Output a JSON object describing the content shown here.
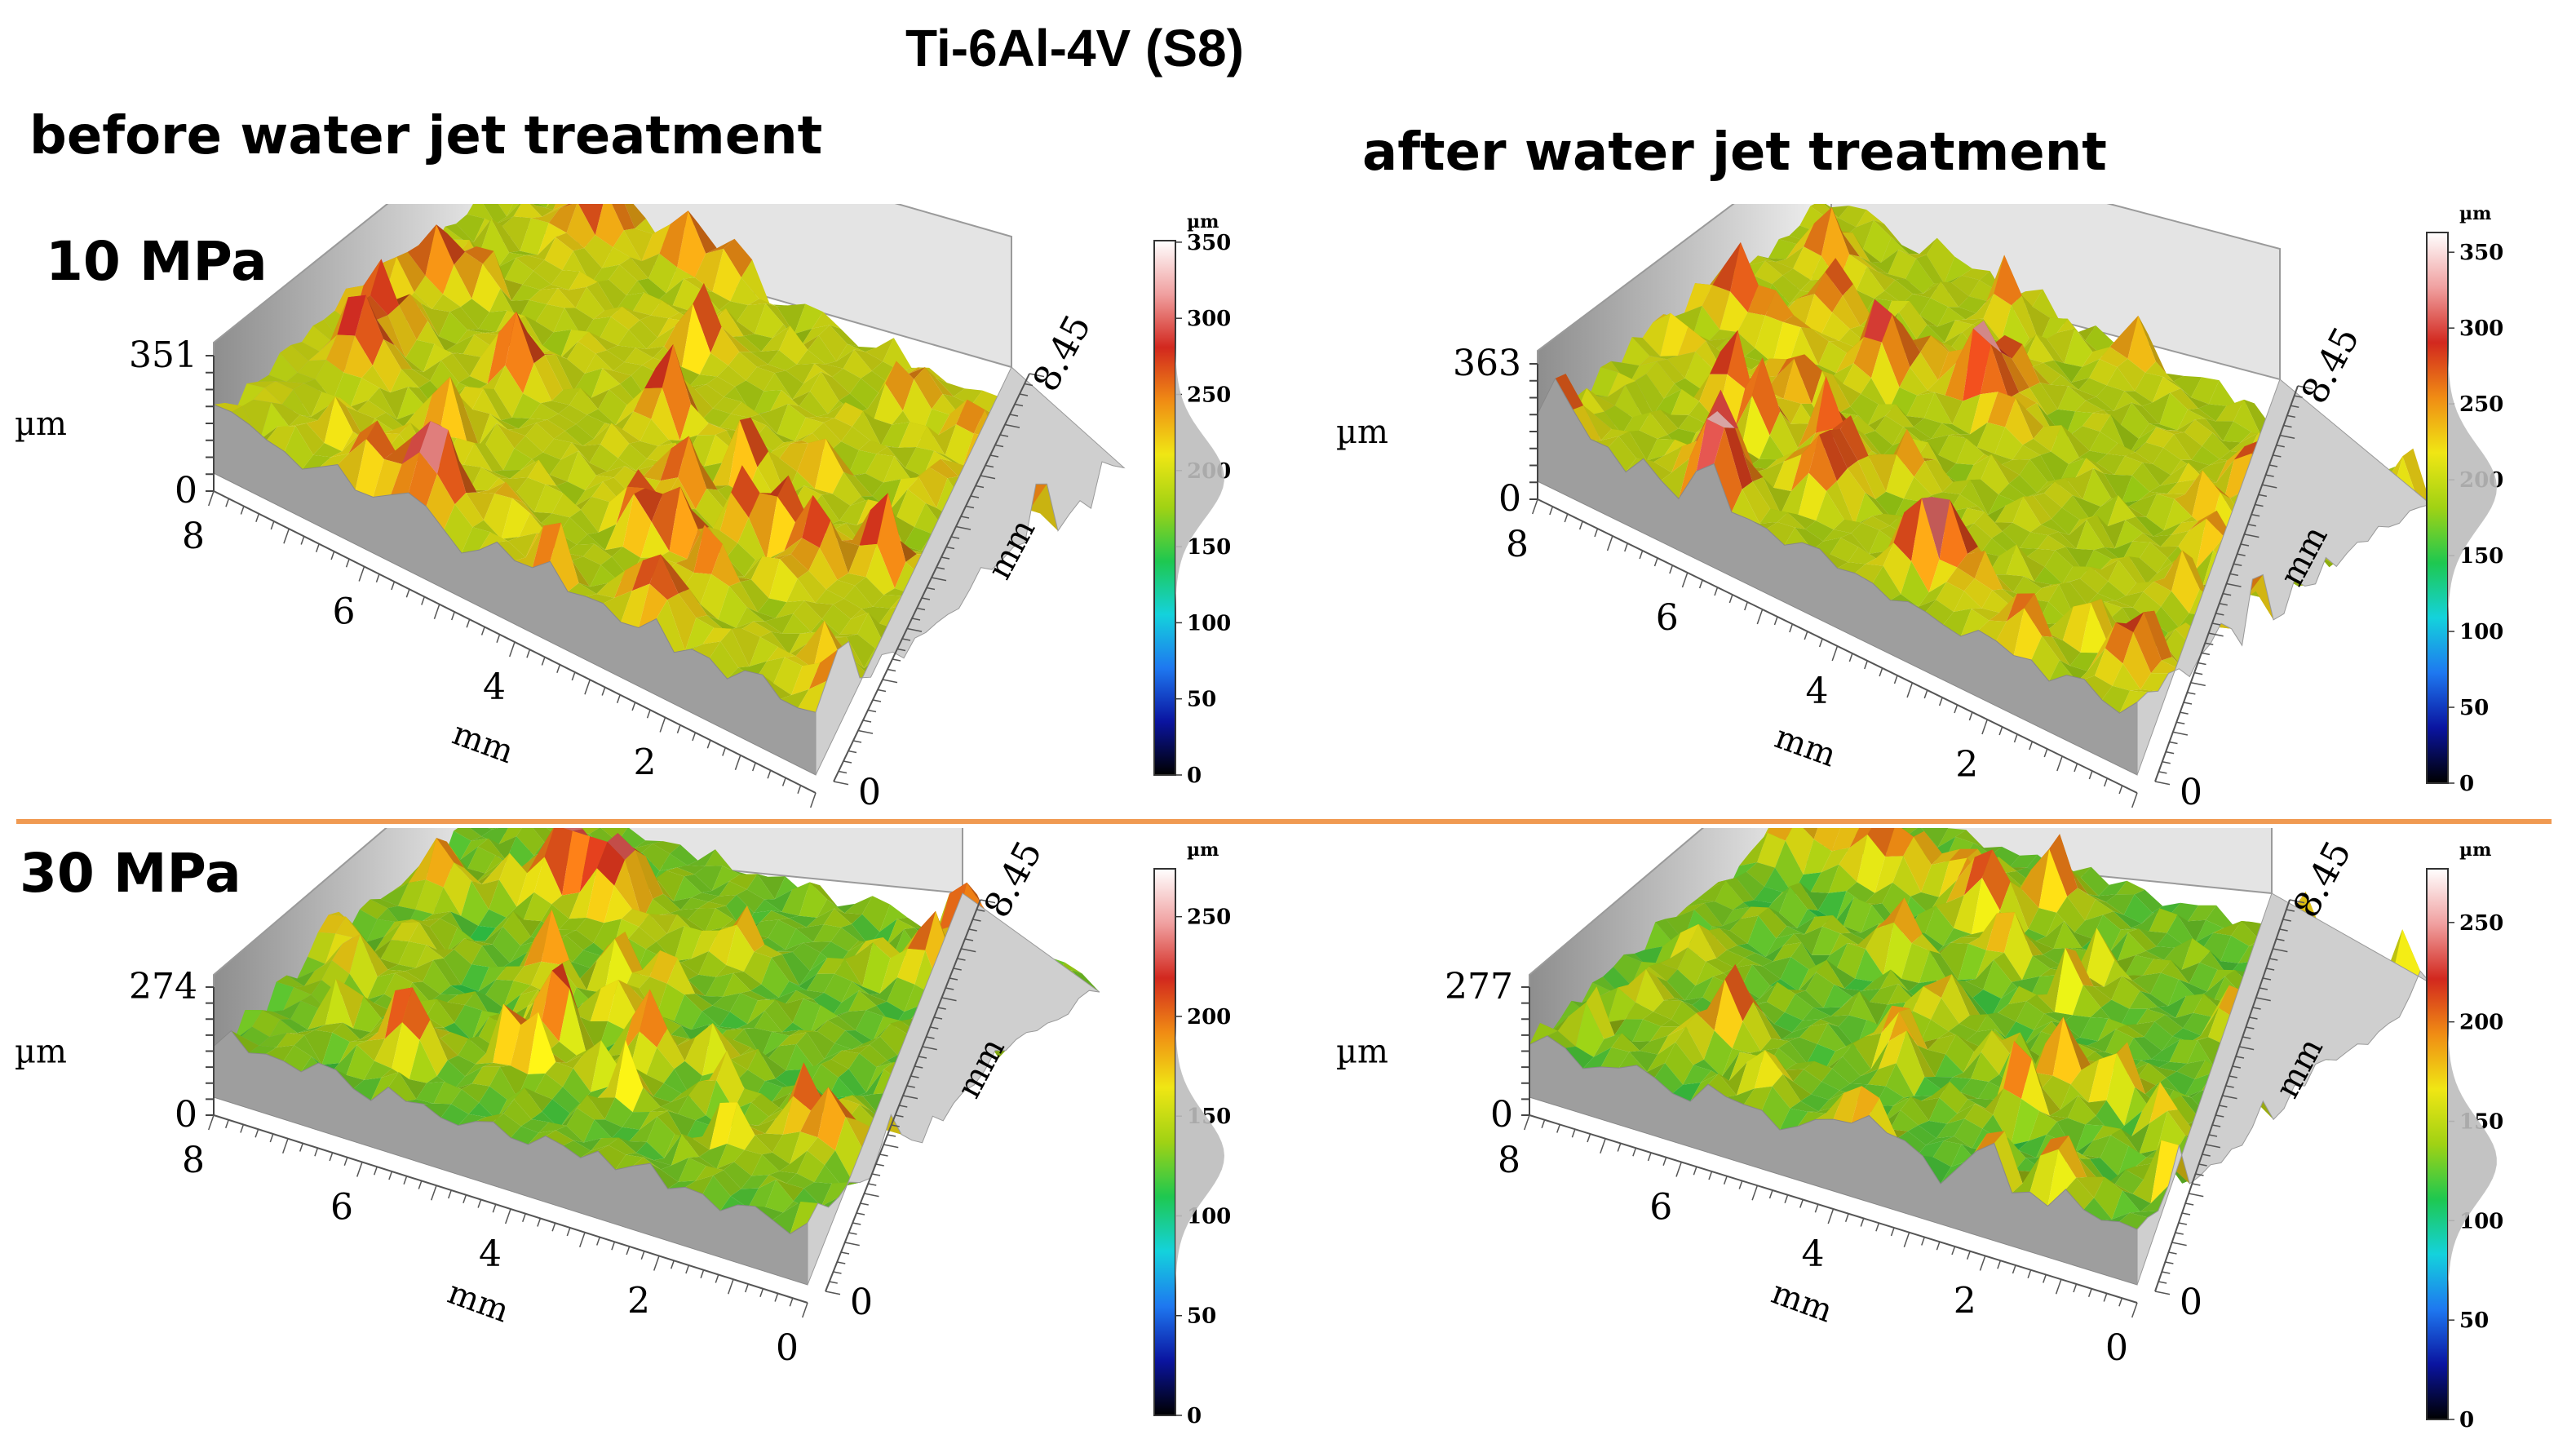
{
  "figure": {
    "title": "Ti-6Al-4V (S8)",
    "column_labels": [
      "before water jet treatment",
      "after water jet treatment"
    ],
    "row_labels": [
      "10 MPa",
      "30 MPa"
    ]
  },
  "colors": {
    "divider": "#f09a52",
    "colormap": [
      "#000000",
      "#0a14a0",
      "#1e78f0",
      "#14d2dc",
      "#1ec850",
      "#a0d214",
      "#f0e614",
      "#f08c14",
      "#d2281e",
      "#f0a0a0",
      "#ffffff"
    ]
  },
  "chart_data": [
    {
      "type": "surface",
      "title": "before water jet treatment — 10 MPa",
      "z_label": "µm",
      "z_max_label": "351",
      "z_min_label": "0",
      "x_label": "mm",
      "x_ticks": [
        "8",
        "6",
        "4",
        "2",
        "0"
      ],
      "y_label": "mm",
      "y_ticks": [
        "0",
        "8.45"
      ],
      "colorbar": {
        "unit": "µm",
        "range": [
          0,
          351
        ],
        "ticks": [
          "350",
          "300",
          "250",
          "200",
          "150",
          "100",
          "50",
          "0"
        ],
        "tick_values": [
          350,
          300,
          250,
          200,
          150,
          100,
          50,
          0
        ],
        "histogram_peak": 195
      }
    },
    {
      "type": "surface",
      "title": "after water jet treatment — 10 MPa",
      "z_label": "µm",
      "z_max_label": "363",
      "z_min_label": "0",
      "x_label": "mm",
      "x_ticks": [
        "8",
        "6",
        "4",
        "2",
        "0"
      ],
      "y_label": "mm",
      "y_ticks": [
        "0",
        "8.45"
      ],
      "colorbar": {
        "unit": "µm",
        "range": [
          0,
          363
        ],
        "ticks": [
          "350",
          "300",
          "250",
          "200",
          "150",
          "100",
          "50",
          "0"
        ],
        "tick_values": [
          350,
          300,
          250,
          200,
          150,
          100,
          50,
          0
        ],
        "histogram_peak": 195
      }
    },
    {
      "type": "surface",
      "title": "before water jet treatment — 30 MPa",
      "z_label": "µm",
      "z_max_label": "274",
      "z_min_label": "0",
      "x_label": "mm",
      "x_ticks": [
        "8",
        "6",
        "4",
        "2",
        "0"
      ],
      "y_label": "mm",
      "y_ticks": [
        "0",
        "8.45"
      ],
      "colorbar": {
        "unit": "µm",
        "range": [
          0,
          274
        ],
        "ticks": [
          "250",
          "200",
          "150",
          "100",
          "50",
          "0"
        ],
        "tick_values": [
          250,
          200,
          150,
          100,
          50,
          0
        ],
        "histogram_peak": 130
      }
    },
    {
      "type": "surface",
      "title": "after water jet treatment — 30 MPa",
      "z_label": "µm",
      "z_max_label": "277",
      "z_min_label": "0",
      "x_label": "mm",
      "x_ticks": [
        "8",
        "6",
        "4",
        "2",
        "0"
      ],
      "y_label": "mm",
      "y_ticks": [
        "0",
        "8.45"
      ],
      "colorbar": {
        "unit": "µm",
        "range": [
          0,
          277
        ],
        "ticks": [
          "250",
          "200",
          "150",
          "100",
          "50",
          "0"
        ],
        "tick_values": [
          250,
          200,
          150,
          100,
          50,
          0
        ],
        "histogram_peak": 130
      }
    }
  ]
}
